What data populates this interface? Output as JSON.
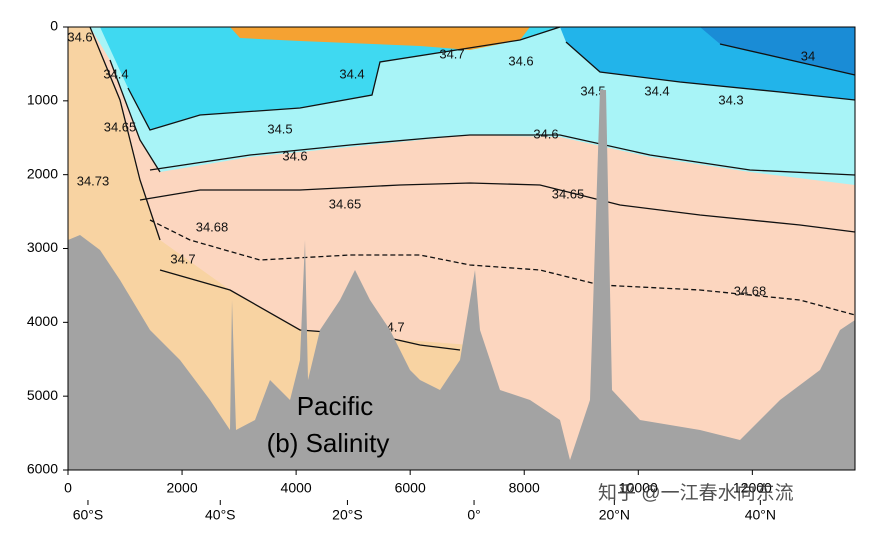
{
  "chart_data": {
    "type": "section",
    "title": "Pacific",
    "subtitle": "(b) Salinity",
    "xlim": [
      0,
      13800
    ],
    "xticks": [
      0,
      2000,
      4000,
      6000,
      8000,
      10000,
      12000
    ],
    "ylim": [
      0,
      6000
    ],
    "yticks": [
      0,
      1000,
      2000,
      3000,
      4000,
      5000,
      6000
    ],
    "invert_y": true,
    "latitude_ticks": [
      {
        "value": 350,
        "label": "60°S"
      },
      {
        "value": 2670,
        "label": "40°S"
      },
      {
        "value": 4900,
        "label": "20°S"
      },
      {
        "value": 7120,
        "label": "0°"
      },
      {
        "value": 9580,
        "label": "20°N"
      },
      {
        "value": 12140,
        "label": "40°N"
      }
    ],
    "contour_labels": [
      "34.6",
      "34.4",
      "34.65",
      "34.73",
      "34.68",
      "34.7",
      "34.5",
      "34.6",
      "34.4",
      "34.7",
      "34.6",
      "34.5",
      "34.4",
      "34.3",
      "34",
      "34.6",
      "34.65",
      "34.65",
      "34.68",
      "34.7"
    ],
    "watermark": "知乎 @一江春水向东流"
  }
}
